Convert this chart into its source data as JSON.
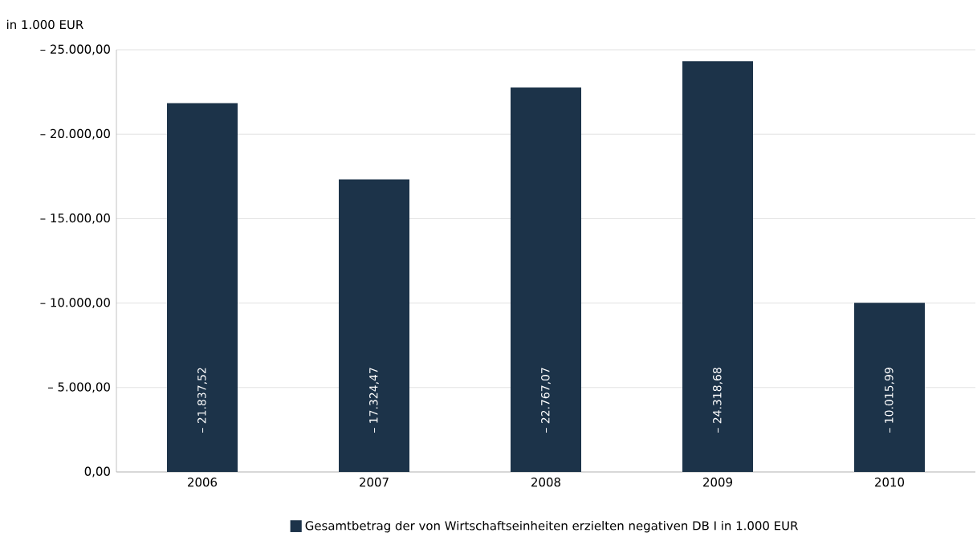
{
  "chart_data": {
    "type": "bar",
    "ylabel": "in 1.000 EUR",
    "categories": [
      "2006",
      "2007",
      "2008",
      "2009",
      "2010"
    ],
    "series": [
      {
        "name": "Gesamtbetrag der von Wirtschaftseinheiten erzielten negativen DB I in 1.000 EUR",
        "color": "#1c3349",
        "values": [
          -21837.52,
          -17324.47,
          -22767.07,
          -24318.68,
          -10015.99
        ],
        "value_labels": [
          "– 21.837,52",
          "– 17.324,47",
          "– 22.767,07",
          "– 24.318,68",
          "– 10.015,99"
        ]
      }
    ],
    "ylim": [
      0,
      -25000
    ],
    "yticks": [
      {
        "value": 0,
        "label": "0,00"
      },
      {
        "value": -5000,
        "label": "– 5.000,00"
      },
      {
        "value": -10000,
        "label": "– 10.000,00"
      },
      {
        "value": -15000,
        "label": "– 15.000,00"
      },
      {
        "value": -20000,
        "label": "– 20.000,00"
      },
      {
        "value": -25000,
        "label": "– 25.000,00"
      }
    ],
    "grid": "y",
    "legend": "bottom"
  }
}
